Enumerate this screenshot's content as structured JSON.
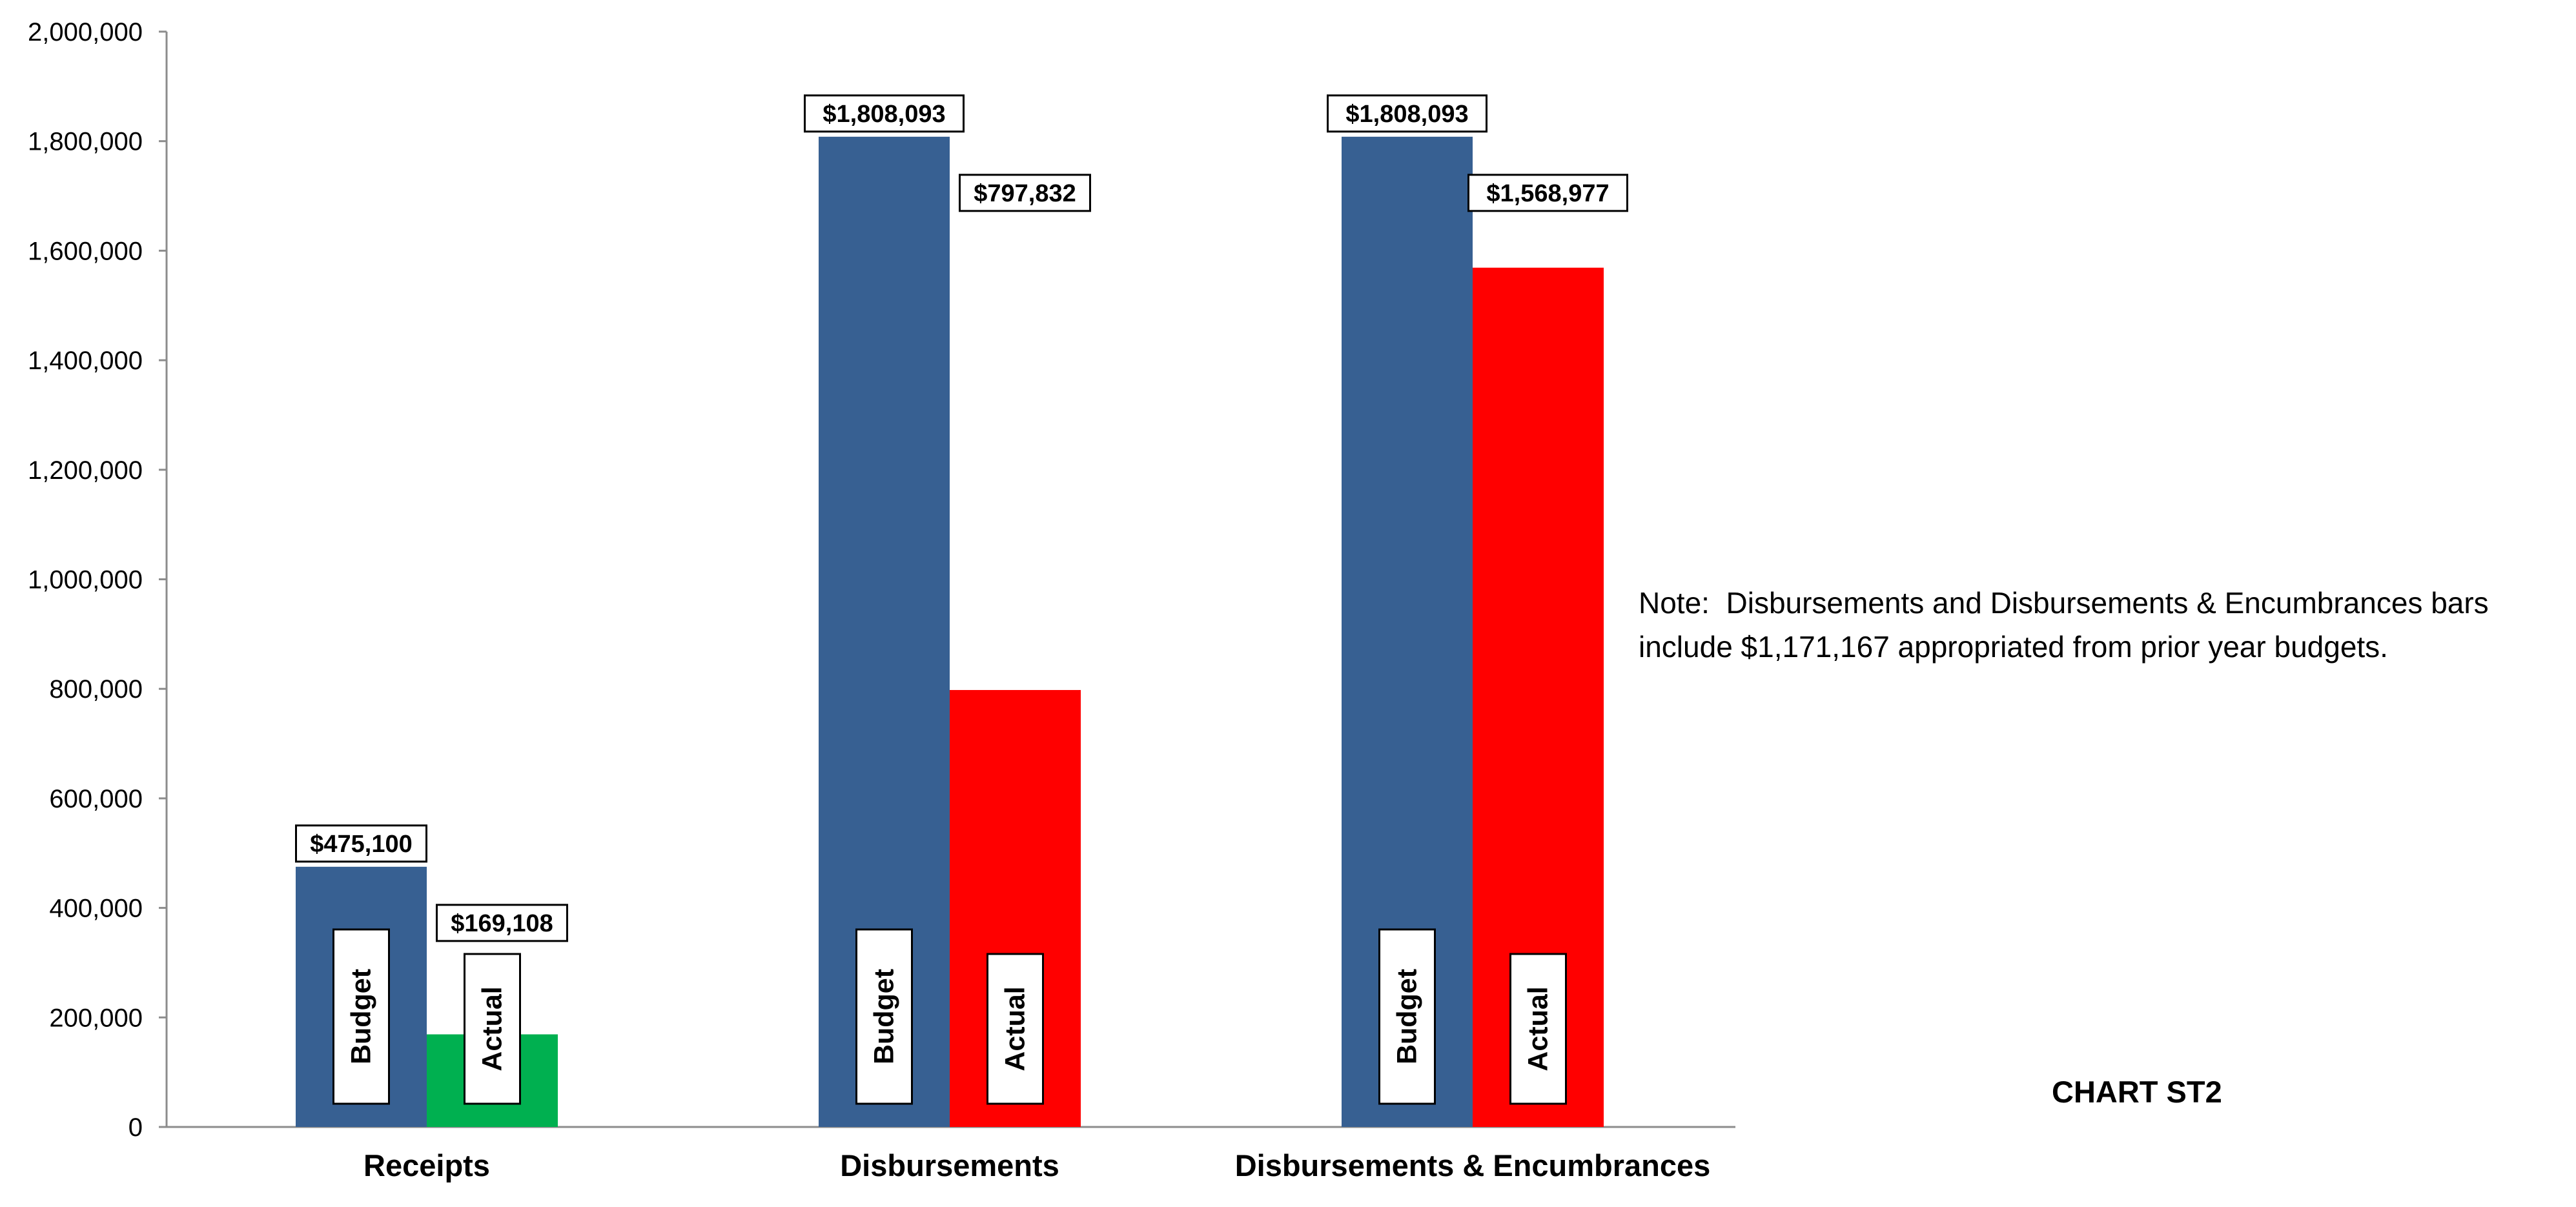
{
  "chart_data": {
    "type": "bar",
    "categories": [
      "Receipts",
      "Disbursements",
      "Disbursements & Encumbrances"
    ],
    "series": [
      {
        "name": "Budget",
        "color": "#376092",
        "values": [
          475100,
          1808093,
          1808093
        ],
        "value_labels": [
          "$475,100",
          "$1,808,093",
          "$1,808,093"
        ]
      },
      {
        "name": "Actual",
        "colors": [
          "#00B050",
          "#FF0000",
          "#FF0000"
        ],
        "values": [
          169108,
          797832,
          1568977
        ],
        "value_labels": [
          "$169,108",
          "$797,832",
          "$1,568,977"
        ]
      }
    ],
    "ylim": [
      0,
      2000000
    ],
    "yticks": [
      0,
      200000,
      400000,
      600000,
      800000,
      1000000,
      1200000,
      1400000,
      1600000,
      1800000,
      2000000
    ],
    "ytick_labels": [
      "0",
      "200,000",
      "400,000",
      "600,000",
      "800,000",
      "1,000,000",
      "1,200,000",
      "1,400,000",
      "1,600,000",
      "1,800,000",
      "2,000,000"
    ],
    "grid": false,
    "legend": "none (series names shown as rotated labels inside bars)"
  },
  "note": {
    "line1": "Note:  Disbursements and Disbursements & Encumbrances bars",
    "line2": "include $1,171,167 appropriated from prior year budgets."
  },
  "chart_code": "CHART ST2"
}
